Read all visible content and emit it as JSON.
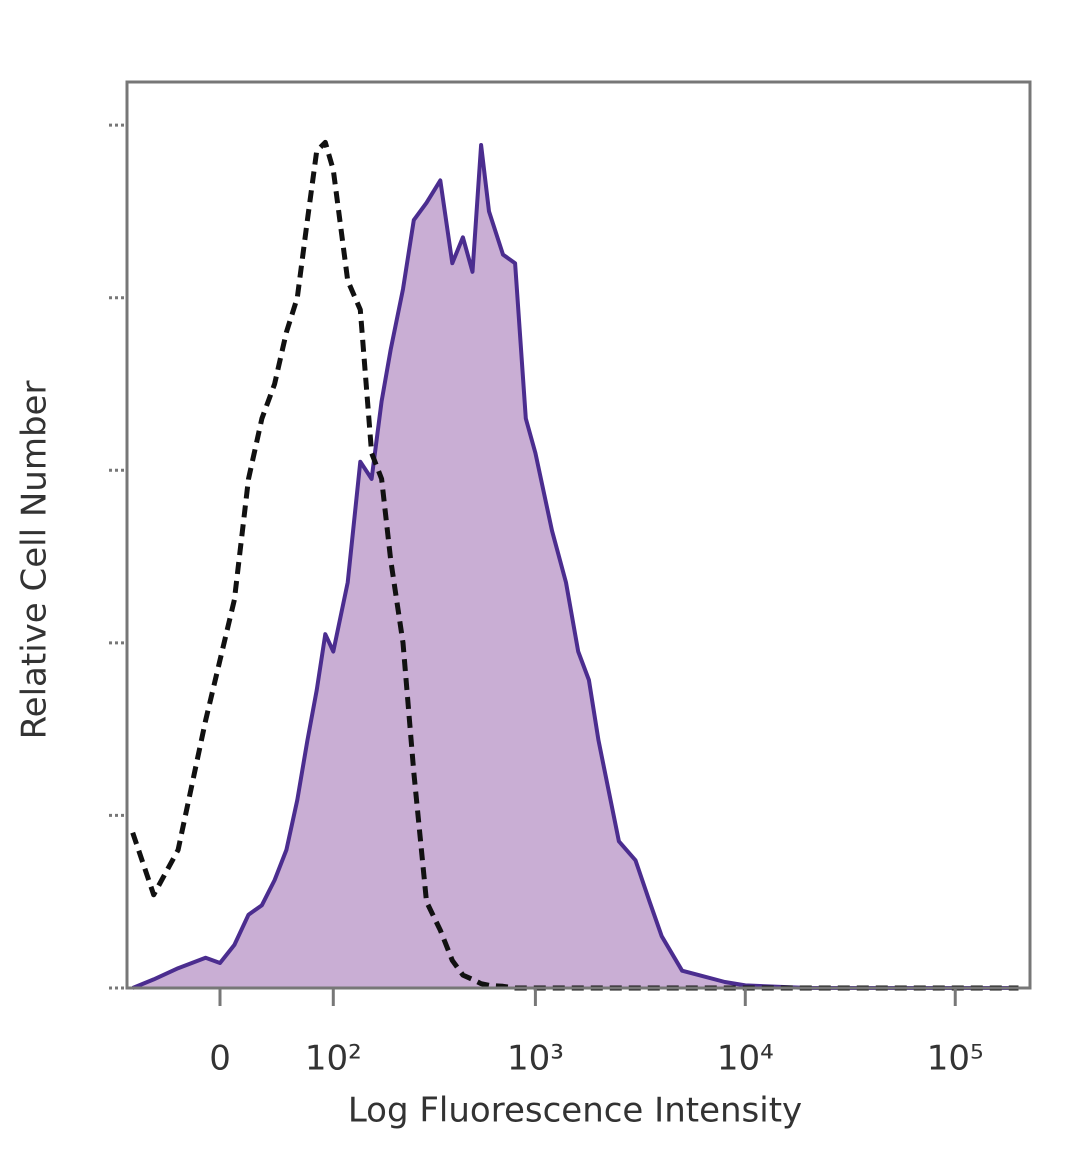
{
  "chart_data": {
    "type": "histogram-overlay",
    "xlabel": "Log Fluorescence Intensity",
    "ylabel": "Relative Cell Number",
    "xscale": "arcsinh",
    "xlim": [
      -76,
      227000
    ],
    "ylim": [
      0,
      105
    ],
    "xticks": [
      {
        "value": 0,
        "label": "0"
      },
      {
        "value": 100,
        "label": "10²"
      },
      {
        "value": 1000,
        "label": "10³"
      },
      {
        "value": 10000,
        "label": "10⁴"
      },
      {
        "value": 100000,
        "label": "10⁵"
      }
    ],
    "yticks": [
      0,
      20,
      40,
      60,
      80,
      100
    ],
    "x": [
      -70,
      -50,
      -30,
      -10,
      0,
      10,
      20,
      30,
      40,
      50,
      60,
      70,
      80,
      90,
      100,
      120,
      140,
      160,
      180,
      200,
      230,
      260,
      300,
      350,
      400,
      450,
      500,
      550,
      600,
      700,
      800,
      900,
      1000,
      1200,
      1400,
      1600,
      1800,
      2000,
      2500,
      3000,
      3500,
      4000,
      5000,
      6000,
      8000,
      10000,
      20000,
      50000,
      100000,
      200000
    ],
    "series": [
      {
        "color": "#4b2d8f",
        "fill": "#c9aed4",
        "style": "solid",
        "values": [
          0,
          1,
          2.3,
          3.5,
          2.9,
          5,
          8.5,
          9.6,
          12.5,
          16,
          21.8,
          28.7,
          34.5,
          41,
          39,
          47,
          61,
          59,
          68,
          74,
          81,
          89,
          91,
          93.6,
          84,
          87,
          83,
          97.7,
          90,
          85,
          84,
          66,
          62,
          53,
          47,
          39,
          35.7,
          28.7,
          17,
          14.8,
          10,
          6,
          2,
          1.5,
          0.7,
          0.3,
          0,
          0,
          0,
          0
        ]
      },
      {
        "color": "#111111",
        "style": "dashed",
        "values": [
          18,
          10.8,
          16,
          31,
          38,
          45,
          59,
          66,
          70,
          76,
          80,
          89,
          97,
          98,
          94.8,
          82,
          78.6,
          62,
          59,
          49.6,
          40,
          25,
          10,
          6.7,
          3.2,
          1.5,
          1,
          0.5,
          0.3,
          0.2,
          0,
          0,
          0,
          0,
          0,
          0,
          0,
          0,
          0,
          0,
          0,
          0,
          0,
          0,
          0,
          0,
          0,
          0,
          0,
          0
        ]
      }
    ]
  }
}
